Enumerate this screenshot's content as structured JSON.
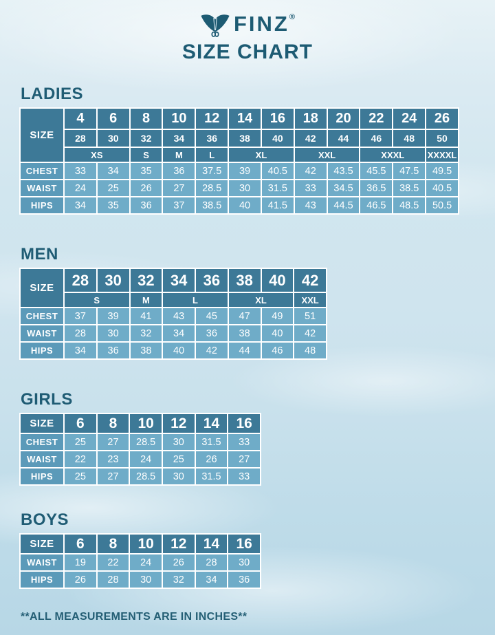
{
  "page": {
    "brand": "FINZ",
    "registered_mark": "®",
    "title": "SIZE CHART",
    "footer_note": "**ALL MEASUREMENTS ARE IN INCHES**"
  },
  "colors": {
    "header_cell": "#3D7997",
    "label_cell": "#5B9AB9",
    "data_cell": "#6FACC8",
    "heading_text": "#1F5C74",
    "cell_text": "#FFFFFF",
    "background_top": "#E7F2F6",
    "background_bottom": "#B7D7E6"
  },
  "icons": {
    "logo": "finz-fin-icon"
  },
  "chart_data": [
    {
      "type": "table",
      "id": "ladies",
      "title": "LADIES",
      "rows": [
        {
          "kind": "num1",
          "cells": [
            {
              "t": "SIZE",
              "k": "size",
              "r": 3
            },
            {
              "t": "4",
              "k": "h"
            },
            {
              "t": "6",
              "k": "h"
            },
            {
              "t": "8",
              "k": "h"
            },
            {
              "t": "10",
              "k": "h"
            },
            {
              "t": "12",
              "k": "h"
            },
            {
              "t": "14",
              "k": "h"
            },
            {
              "t": "16",
              "k": "h"
            },
            {
              "t": "18",
              "k": "h"
            },
            {
              "t": "20",
              "k": "h"
            },
            {
              "t": "22",
              "k": "h"
            },
            {
              "t": "24",
              "k": "h"
            },
            {
              "t": "26",
              "k": "h"
            }
          ]
        },
        {
          "kind": "num2",
          "cells": [
            {
              "t": "28",
              "k": "h"
            },
            {
              "t": "30",
              "k": "h"
            },
            {
              "t": "32",
              "k": "h"
            },
            {
              "t": "34",
              "k": "h"
            },
            {
              "t": "36",
              "k": "h"
            },
            {
              "t": "38",
              "k": "h"
            },
            {
              "t": "40",
              "k": "h"
            },
            {
              "t": "42",
              "k": "h"
            },
            {
              "t": "44",
              "k": "h"
            },
            {
              "t": "46",
              "k": "h"
            },
            {
              "t": "48",
              "k": "h"
            },
            {
              "t": "50",
              "k": "h"
            }
          ]
        },
        {
          "kind": "letters",
          "cells": [
            {
              "t": "XS",
              "k": "h",
              "c": 2
            },
            {
              "t": "S",
              "k": "h"
            },
            {
              "t": "M",
              "k": "h"
            },
            {
              "t": "L",
              "k": "h"
            },
            {
              "t": "XL",
              "k": "h",
              "c": 2
            },
            {
              "t": "XXL",
              "k": "h",
              "c": 2
            },
            {
              "t": "XXXL",
              "k": "h",
              "c": 2
            },
            {
              "t": "XXXXL",
              "k": "h"
            }
          ]
        },
        {
          "kind": "data",
          "cells": [
            {
              "t": "CHEST",
              "k": "lab"
            },
            {
              "t": "33",
              "k": "d"
            },
            {
              "t": "34",
              "k": "d"
            },
            {
              "t": "35",
              "k": "d"
            },
            {
              "t": "36",
              "k": "d"
            },
            {
              "t": "37.5",
              "k": "d"
            },
            {
              "t": "39",
              "k": "d"
            },
            {
              "t": "40.5",
              "k": "d"
            },
            {
              "t": "42",
              "k": "d"
            },
            {
              "t": "43.5",
              "k": "d"
            },
            {
              "t": "45.5",
              "k": "d"
            },
            {
              "t": "47.5",
              "k": "d"
            },
            {
              "t": "49.5",
              "k": "d"
            }
          ]
        },
        {
          "kind": "data",
          "cells": [
            {
              "t": "WAIST",
              "k": "lab"
            },
            {
              "t": "24",
              "k": "d"
            },
            {
              "t": "25",
              "k": "d"
            },
            {
              "t": "26",
              "k": "d"
            },
            {
              "t": "27",
              "k": "d"
            },
            {
              "t": "28.5",
              "k": "d"
            },
            {
              "t": "30",
              "k": "d"
            },
            {
              "t": "31.5",
              "k": "d"
            },
            {
              "t": "33",
              "k": "d"
            },
            {
              "t": "34.5",
              "k": "d"
            },
            {
              "t": "36.5",
              "k": "d"
            },
            {
              "t": "38.5",
              "k": "d"
            },
            {
              "t": "40.5",
              "k": "d"
            }
          ]
        },
        {
          "kind": "data",
          "cells": [
            {
              "t": "HIPS",
              "k": "lab"
            },
            {
              "t": "34",
              "k": "d"
            },
            {
              "t": "35",
              "k": "d"
            },
            {
              "t": "36",
              "k": "d"
            },
            {
              "t": "37",
              "k": "d"
            },
            {
              "t": "38.5",
              "k": "d"
            },
            {
              "t": "40",
              "k": "d"
            },
            {
              "t": "41.5",
              "k": "d"
            },
            {
              "t": "43",
              "k": "d"
            },
            {
              "t": "44.5",
              "k": "d"
            },
            {
              "t": "46.5",
              "k": "d"
            },
            {
              "t": "48.5",
              "k": "d"
            },
            {
              "t": "50.5",
              "k": "d"
            }
          ]
        }
      ]
    },
    {
      "type": "table",
      "id": "men",
      "title": "MEN",
      "rows": [
        {
          "kind": "num1",
          "cells": [
            {
              "t": "SIZE",
              "k": "size",
              "r": 2
            },
            {
              "t": "28",
              "k": "h"
            },
            {
              "t": "30",
              "k": "h"
            },
            {
              "t": "32",
              "k": "h"
            },
            {
              "t": "34",
              "k": "h"
            },
            {
              "t": "36",
              "k": "h"
            },
            {
              "t": "38",
              "k": "h"
            },
            {
              "t": "40",
              "k": "h"
            },
            {
              "t": "42",
              "k": "h"
            }
          ]
        },
        {
          "kind": "letters",
          "cells": [
            {
              "t": "S",
              "k": "h",
              "c": 2
            },
            {
              "t": "M",
              "k": "h"
            },
            {
              "t": "L",
              "k": "h",
              "c": 2
            },
            {
              "t": "XL",
              "k": "h",
              "c": 2
            },
            {
              "t": "XXL",
              "k": "h"
            }
          ]
        },
        {
          "kind": "data",
          "cells": [
            {
              "t": "CHEST",
              "k": "lab"
            },
            {
              "t": "37",
              "k": "d"
            },
            {
              "t": "39",
              "k": "d"
            },
            {
              "t": "41",
              "k": "d"
            },
            {
              "t": "43",
              "k": "d"
            },
            {
              "t": "45",
              "k": "d"
            },
            {
              "t": "47",
              "k": "d"
            },
            {
              "t": "49",
              "k": "d"
            },
            {
              "t": "51",
              "k": "d"
            }
          ]
        },
        {
          "kind": "data",
          "cells": [
            {
              "t": "WAIST",
              "k": "lab"
            },
            {
              "t": "28",
              "k": "d"
            },
            {
              "t": "30",
              "k": "d"
            },
            {
              "t": "32",
              "k": "d"
            },
            {
              "t": "34",
              "k": "d"
            },
            {
              "t": "36",
              "k": "d"
            },
            {
              "t": "38",
              "k": "d"
            },
            {
              "t": "40",
              "k": "d"
            },
            {
              "t": "42",
              "k": "d"
            }
          ]
        },
        {
          "kind": "data",
          "cells": [
            {
              "t": "HIPS",
              "k": "lab"
            },
            {
              "t": "34",
              "k": "d"
            },
            {
              "t": "36",
              "k": "d"
            },
            {
              "t": "38",
              "k": "d"
            },
            {
              "t": "40",
              "k": "d"
            },
            {
              "t": "42",
              "k": "d"
            },
            {
              "t": "44",
              "k": "d"
            },
            {
              "t": "46",
              "k": "d"
            },
            {
              "t": "48",
              "k": "d"
            }
          ]
        }
      ]
    },
    {
      "type": "table",
      "id": "girls",
      "title": "GIRLS",
      "rows": [
        {
          "kind": "num1",
          "cells": [
            {
              "t": "SIZE",
              "k": "size"
            },
            {
              "t": "6",
              "k": "h"
            },
            {
              "t": "8",
              "k": "h"
            },
            {
              "t": "10",
              "k": "h"
            },
            {
              "t": "12",
              "k": "h"
            },
            {
              "t": "14",
              "k": "h"
            },
            {
              "t": "16",
              "k": "h"
            }
          ]
        },
        {
          "kind": "data",
          "cells": [
            {
              "t": "CHEST",
              "k": "lab"
            },
            {
              "t": "25",
              "k": "d"
            },
            {
              "t": "27",
              "k": "d"
            },
            {
              "t": "28.5",
              "k": "d"
            },
            {
              "t": "30",
              "k": "d"
            },
            {
              "t": "31.5",
              "k": "d"
            },
            {
              "t": "33",
              "k": "d"
            }
          ]
        },
        {
          "kind": "data",
          "cells": [
            {
              "t": "WAIST",
              "k": "lab"
            },
            {
              "t": "22",
              "k": "d"
            },
            {
              "t": "23",
              "k": "d"
            },
            {
              "t": "24",
              "k": "d"
            },
            {
              "t": "25",
              "k": "d"
            },
            {
              "t": "26",
              "k": "d"
            },
            {
              "t": "27",
              "k": "d"
            }
          ]
        },
        {
          "kind": "data",
          "cells": [
            {
              "t": "HIPS",
              "k": "lab"
            },
            {
              "t": "25",
              "k": "d"
            },
            {
              "t": "27",
              "k": "d"
            },
            {
              "t": "28.5",
              "k": "d"
            },
            {
              "t": "30",
              "k": "d"
            },
            {
              "t": "31.5",
              "k": "d"
            },
            {
              "t": "33",
              "k": "d"
            }
          ]
        }
      ]
    },
    {
      "type": "table",
      "id": "boys",
      "title": "BOYS",
      "rows": [
        {
          "kind": "num1",
          "cells": [
            {
              "t": "SIZE",
              "k": "size"
            },
            {
              "t": "6",
              "k": "h"
            },
            {
              "t": "8",
              "k": "h"
            },
            {
              "t": "10",
              "k": "h"
            },
            {
              "t": "12",
              "k": "h"
            },
            {
              "t": "14",
              "k": "h"
            },
            {
              "t": "16",
              "k": "h"
            }
          ]
        },
        {
          "kind": "data",
          "cells": [
            {
              "t": "WAIST",
              "k": "lab"
            },
            {
              "t": "19",
              "k": "d"
            },
            {
              "t": "22",
              "k": "d"
            },
            {
              "t": "24",
              "k": "d"
            },
            {
              "t": "26",
              "k": "d"
            },
            {
              "t": "28",
              "k": "d"
            },
            {
              "t": "30",
              "k": "d"
            }
          ]
        },
        {
          "kind": "data",
          "cells": [
            {
              "t": "HIPS",
              "k": "lab"
            },
            {
              "t": "26",
              "k": "d"
            },
            {
              "t": "28",
              "k": "d"
            },
            {
              "t": "30",
              "k": "d"
            },
            {
              "t": "32",
              "k": "d"
            },
            {
              "t": "34",
              "k": "d"
            },
            {
              "t": "36",
              "k": "d"
            }
          ]
        }
      ]
    }
  ]
}
